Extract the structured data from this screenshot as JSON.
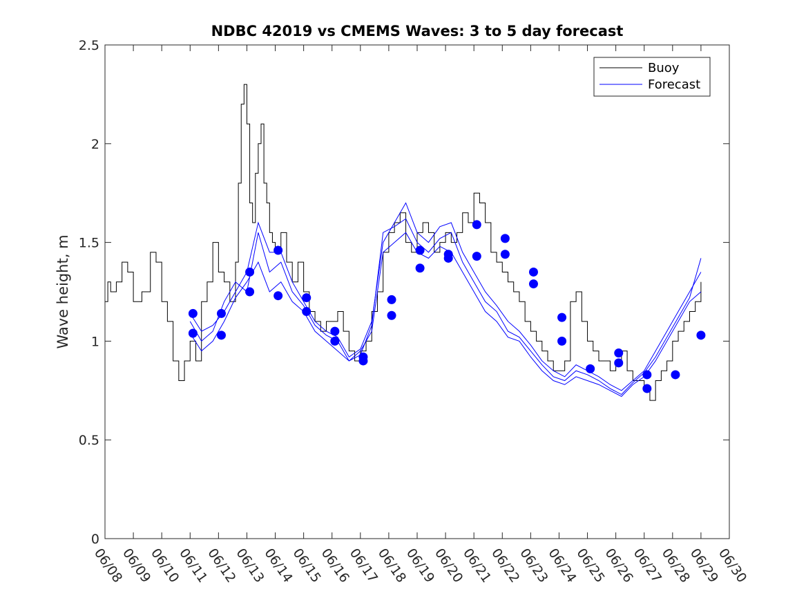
{
  "chart_data": {
    "type": "line",
    "title": "NDBC 42019 vs CMEMS Waves: 3 to 5 day forecast",
    "xlabel": "",
    "ylabel": "Wave height, m",
    "xlim": [
      "06/08",
      "06/30"
    ],
    "ylim": [
      0,
      2.5
    ],
    "grid": false,
    "legend_position": "top-right",
    "x_tick_labels": [
      "06/08",
      "06/09",
      "06/10",
      "06/11",
      "06/12",
      "06/13",
      "06/14",
      "06/15",
      "06/16",
      "06/17",
      "06/18",
      "06/19",
      "06/20",
      "06/21",
      "06/22",
      "06/23",
      "06/24",
      "06/25",
      "06/26",
      "06/27",
      "06/28",
      "06/29",
      "06/30"
    ],
    "y_ticks": [
      0,
      0.5,
      1,
      1.5,
      2,
      2.5
    ],
    "y_tick_labels": [
      "0",
      "0.5",
      "1",
      "1.5",
      "2",
      "2.5"
    ],
    "legend": [
      "Buoy",
      "Forecast"
    ],
    "colors": {
      "buoy": "#000000",
      "forecast": "#0000ff"
    },
    "buoy": {
      "name": "Buoy",
      "x": [
        0,
        0.1,
        0.2,
        0.4,
        0.6,
        0.8,
        1.0,
        1.3,
        1.6,
        1.8,
        2.0,
        2.2,
        2.4,
        2.6,
        2.8,
        3.0,
        3.2,
        3.4,
        3.6,
        3.8,
        4.0,
        4.2,
        4.4,
        4.6,
        4.7,
        4.8,
        4.9,
        5.0,
        5.1,
        5.2,
        5.3,
        5.4,
        5.5,
        5.6,
        5.7,
        5.8,
        5.9,
        6.0,
        6.2,
        6.4,
        6.6,
        6.8,
        7.0,
        7.2,
        7.4,
        7.6,
        7.8,
        8.0,
        8.2,
        8.4,
        8.6,
        8.8,
        9.0,
        9.2,
        9.4,
        9.6,
        9.8,
        10.0,
        10.2,
        10.4,
        10.6,
        10.8,
        11.0,
        11.2,
        11.4,
        11.6,
        11.8,
        12.0,
        12.2,
        12.4,
        12.6,
        12.8,
        13.0,
        13.2,
        13.4,
        13.6,
        13.8,
        14.0,
        14.2,
        14.4,
        14.6,
        14.8,
        15.0,
        15.2,
        15.4,
        15.6,
        15.8,
        16.0,
        16.2,
        16.4,
        16.6,
        16.8,
        17.0,
        17.2,
        17.4,
        17.6,
        17.8,
        18.0,
        18.2,
        18.4,
        18.6,
        18.8,
        19.0,
        19.2,
        19.4,
        19.6,
        19.8,
        20.0,
        20.2,
        20.4,
        20.6,
        20.8,
        21.0
      ],
      "values": [
        1.2,
        1.3,
        1.25,
        1.3,
        1.4,
        1.35,
        1.2,
        1.25,
        1.45,
        1.4,
        1.2,
        1.1,
        0.9,
        0.8,
        0.9,
        1.0,
        0.9,
        1.2,
        1.3,
        1.5,
        1.35,
        1.3,
        1.2,
        1.4,
        1.8,
        2.2,
        2.3,
        2.1,
        1.7,
        1.6,
        1.85,
        2.0,
        2.1,
        1.8,
        1.7,
        1.55,
        1.5,
        1.45,
        1.55,
        1.4,
        1.3,
        1.4,
        1.25,
        1.15,
        1.1,
        1.05,
        1.1,
        1.1,
        1.15,
        1.05,
        0.95,
        0.9,
        0.95,
        1.0,
        1.15,
        1.25,
        1.45,
        1.55,
        1.6,
        1.65,
        1.5,
        1.45,
        1.55,
        1.6,
        1.55,
        1.45,
        1.5,
        1.55,
        1.5,
        1.55,
        1.65,
        1.6,
        1.75,
        1.7,
        1.6,
        1.45,
        1.4,
        1.35,
        1.3,
        1.25,
        1.2,
        1.1,
        1.05,
        1.0,
        0.95,
        0.9,
        0.85,
        0.85,
        0.9,
        1.2,
        1.25,
        1.1,
        1.0,
        0.95,
        0.9,
        0.9,
        0.85,
        0.9,
        0.95,
        0.85,
        0.8,
        0.8,
        0.75,
        0.7,
        0.8,
        0.85,
        0.9,
        1.0,
        1.05,
        1.1,
        1.15,
        1.2,
        1.3
      ]
    },
    "forecast_series": [
      {
        "name": "Forecast",
        "x": [
          3.0,
          3.4,
          3.8,
          4.2,
          4.6,
          5.0,
          5.4,
          5.8,
          6.2,
          6.6,
          7.0,
          7.4,
          7.8,
          8.2,
          8.6,
          9.0,
          9.4,
          9.8,
          10.2,
          10.6,
          11.0,
          11.4,
          11.8,
          12.2,
          12.6,
          13.0,
          13.4,
          13.8,
          14.2,
          14.6,
          15.0,
          15.4,
          15.8,
          16.2,
          16.6,
          17.0,
          17.4,
          17.8,
          18.2,
          18.6,
          19.0,
          19.4,
          19.8,
          20.2,
          20.6,
          21.0
        ],
        "values": [
          1.14,
          1.05,
          1.08,
          1.15,
          1.25,
          1.35,
          1.6,
          1.45,
          1.45,
          1.3,
          1.2,
          1.1,
          1.05,
          1.02,
          0.92,
          0.96,
          1.1,
          1.5,
          1.6,
          1.7,
          1.55,
          1.5,
          1.58,
          1.6,
          1.45,
          1.35,
          1.25,
          1.18,
          1.1,
          1.05,
          0.98,
          0.9,
          0.85,
          0.82,
          0.88,
          0.85,
          0.82,
          0.78,
          0.75,
          0.8,
          0.85,
          0.95,
          1.05,
          1.15,
          1.25,
          1.35
        ]
      },
      {
        "name": "",
        "x": [
          3.0,
          3.4,
          3.8,
          4.2,
          4.6,
          5.0,
          5.4,
          5.8,
          6.2,
          6.6,
          7.0,
          7.4,
          7.8,
          8.2,
          8.6,
          9.0,
          9.4,
          9.8,
          10.2,
          10.6,
          11.0,
          11.4,
          11.8,
          12.2,
          12.6,
          13.0,
          13.4,
          13.8,
          14.2,
          14.6,
          15.0,
          15.4,
          15.8,
          16.2,
          16.6,
          17.0,
          17.4,
          17.8,
          18.2,
          18.6,
          19.0,
          19.4,
          19.8,
          20.2,
          20.6,
          21.0
        ],
        "values": [
          1.04,
          0.95,
          1.0,
          1.1,
          1.22,
          1.3,
          1.4,
          1.25,
          1.3,
          1.2,
          1.15,
          1.05,
          1.0,
          0.95,
          0.9,
          0.95,
          1.05,
          1.45,
          1.5,
          1.55,
          1.45,
          1.42,
          1.48,
          1.45,
          1.35,
          1.25,
          1.15,
          1.1,
          1.02,
          1.0,
          0.92,
          0.85,
          0.8,
          0.78,
          0.82,
          0.8,
          0.78,
          0.75,
          0.72,
          0.78,
          0.82,
          0.9,
          1.0,
          1.1,
          1.2,
          1.25
        ]
      },
      {
        "name": "",
        "x": [
          3.0,
          3.4,
          3.8,
          4.2,
          4.6,
          5.0,
          5.4,
          5.8,
          6.2,
          6.6,
          7.0,
          7.4,
          7.8,
          8.2,
          8.6,
          9.0,
          9.4,
          9.8,
          10.2,
          10.6,
          11.0,
          11.4,
          11.8,
          12.2,
          12.6,
          13.0,
          13.4,
          13.8,
          14.2,
          14.6,
          15.0,
          15.4,
          15.8,
          16.2,
          16.6,
          17.0,
          17.4,
          17.8,
          18.2,
          18.6,
          19.0,
          19.4,
          19.8,
          20.2,
          20.6,
          21.0
        ],
        "values": [
          1.1,
          1.0,
          1.05,
          1.2,
          1.3,
          1.25,
          1.55,
          1.35,
          1.4,
          1.25,
          1.18,
          1.08,
          1.03,
          1.0,
          0.9,
          0.93,
          1.08,
          1.55,
          1.58,
          1.62,
          1.5,
          1.45,
          1.52,
          1.55,
          1.4,
          1.3,
          1.2,
          1.15,
          1.05,
          1.02,
          0.95,
          0.88,
          0.82,
          0.8,
          0.85,
          0.83,
          0.8,
          0.76,
          0.73,
          0.79,
          0.84,
          0.92,
          1.02,
          1.12,
          1.22,
          1.42
        ]
      }
    ],
    "forecast_markers": {
      "x": [
        3.1,
        3.1,
        4.1,
        4.1,
        5.1,
        5.1,
        6.1,
        6.1,
        7.1,
        7.1,
        8.1,
        8.1,
        9.1,
        9.1,
        10.1,
        10.1,
        11.1,
        11.1,
        12.1,
        12.1,
        13.1,
        13.1,
        14.1,
        14.1,
        15.1,
        15.1,
        16.1,
        16.1,
        17.1,
        18.1,
        18.1,
        19.1,
        19.1,
        20.1,
        21.0
      ],
      "values": [
        1.14,
        1.04,
        1.14,
        1.03,
        1.35,
        1.25,
        1.46,
        1.23,
        1.22,
        1.15,
        1.05,
        1.0,
        0.92,
        0.9,
        1.21,
        1.13,
        1.46,
        1.37,
        1.44,
        1.42,
        1.59,
        1.43,
        1.52,
        1.44,
        1.35,
        1.29,
        1.12,
        1.0,
        0.86,
        0.94,
        0.89,
        0.83,
        0.76,
        0.83,
        1.03
      ]
    }
  }
}
